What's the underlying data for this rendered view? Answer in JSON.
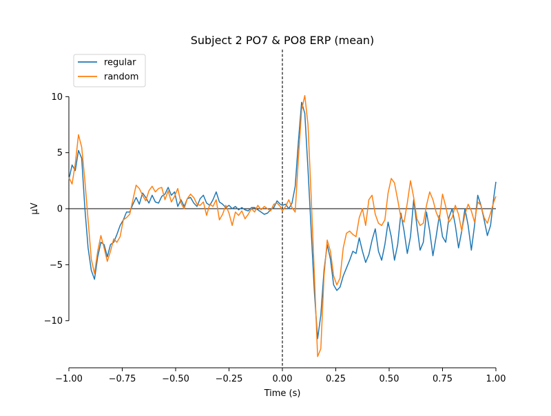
{
  "chart_data": {
    "type": "line",
    "title": "Subject 2 PO7 & PO8 ERP (mean)",
    "xlabel": "Time (s)",
    "ylabel": "µV",
    "xlim": [
      -1.0,
      1.0
    ],
    "ylim": [
      -14.2,
      14.2
    ],
    "x_ticks": [
      -1.0,
      -0.75,
      -0.5,
      -0.25,
      0.0,
      0.25,
      0.5,
      0.75,
      1.0
    ],
    "x_tick_labels": [
      "−1.00",
      "−0.75",
      "−0.50",
      "−0.25",
      "0.00",
      "0.25",
      "0.50",
      "0.75",
      "1.00"
    ],
    "y_ticks": [
      -10,
      -5,
      0,
      5,
      10
    ],
    "y_tick_labels": [
      "−10",
      "−5",
      "0",
      "5",
      "10"
    ],
    "legend_position": "top-left",
    "zero_line": true,
    "vline_x": 0.0,
    "series": [
      {
        "name": "regular",
        "color": "#1f77b4",
        "points": [
          [
            -1.0,
            2.6
          ],
          [
            -0.985,
            3.9
          ],
          [
            -0.97,
            3.4
          ],
          [
            -0.955,
            5.2
          ],
          [
            -0.94,
            4.5
          ],
          [
            -0.925,
            0.0
          ],
          [
            -0.91,
            -3.5
          ],
          [
            -0.895,
            -5.5
          ],
          [
            -0.88,
            -6.3
          ],
          [
            -0.865,
            -4.3
          ],
          [
            -0.85,
            -3.0
          ],
          [
            -0.835,
            -3.2
          ],
          [
            -0.82,
            -4.3
          ],
          [
            -0.805,
            -3.2
          ],
          [
            -0.79,
            -3.0
          ],
          [
            -0.775,
            -2.3
          ],
          [
            -0.76,
            -1.5
          ],
          [
            -0.745,
            -1.0
          ],
          [
            -0.73,
            -0.3
          ],
          [
            -0.715,
            -0.3
          ],
          [
            -0.7,
            0.4
          ],
          [
            -0.685,
            1.0
          ],
          [
            -0.67,
            0.4
          ],
          [
            -0.655,
            1.4
          ],
          [
            -0.64,
            1.0
          ],
          [
            -0.625,
            0.5
          ],
          [
            -0.61,
            1.2
          ],
          [
            -0.595,
            0.6
          ],
          [
            -0.58,
            0.5
          ],
          [
            -0.565,
            1.1
          ],
          [
            -0.55,
            1.3
          ],
          [
            -0.535,
            1.9
          ],
          [
            -0.52,
            1.2
          ],
          [
            -0.505,
            1.5
          ],
          [
            -0.49,
            0.2
          ],
          [
            -0.475,
            0.8
          ],
          [
            -0.46,
            0.2
          ],
          [
            -0.445,
            0.9
          ],
          [
            -0.43,
            1.0
          ],
          [
            -0.415,
            0.5
          ],
          [
            -0.4,
            0.2
          ],
          [
            -0.385,
            0.9
          ],
          [
            -0.37,
            1.2
          ],
          [
            -0.355,
            0.5
          ],
          [
            -0.34,
            0.3
          ],
          [
            -0.325,
            0.8
          ],
          [
            -0.31,
            1.5
          ],
          [
            -0.295,
            0.6
          ],
          [
            -0.28,
            0.4
          ],
          [
            -0.265,
            0.1
          ],
          [
            -0.25,
            0.3
          ],
          [
            -0.235,
            0.0
          ],
          [
            -0.22,
            0.2
          ],
          [
            -0.205,
            -0.1
          ],
          [
            -0.19,
            0.1
          ],
          [
            -0.175,
            -0.1
          ],
          [
            -0.16,
            -0.2
          ],
          [
            -0.145,
            0.1
          ],
          [
            -0.13,
            0.1
          ],
          [
            -0.115,
            -0.1
          ],
          [
            -0.1,
            -0.3
          ],
          [
            -0.085,
            -0.5
          ],
          [
            -0.07,
            -0.4
          ],
          [
            -0.055,
            -0.1
          ],
          [
            -0.04,
            0.1
          ],
          [
            -0.025,
            0.7
          ],
          [
            -0.01,
            0.4
          ],
          [
            0.0,
            0.3
          ],
          [
            0.015,
            0.4
          ],
          [
            0.03,
            0.0
          ],
          [
            0.045,
            0.5
          ],
          [
            0.06,
            2.0
          ],
          [
            0.075,
            6.0
          ],
          [
            0.09,
            9.5
          ],
          [
            0.105,
            8.5
          ],
          [
            0.12,
            3.5
          ],
          [
            0.135,
            -2.0
          ],
          [
            0.15,
            -7.5
          ],
          [
            0.165,
            -11.6
          ],
          [
            0.18,
            -9.5
          ],
          [
            0.195,
            -5.5
          ],
          [
            0.21,
            -3.2
          ],
          [
            0.225,
            -4.5
          ],
          [
            0.24,
            -6.8
          ],
          [
            0.255,
            -7.3
          ],
          [
            0.27,
            -7.0
          ],
          [
            0.285,
            -6.0
          ],
          [
            0.3,
            -5.3
          ],
          [
            0.315,
            -4.6
          ],
          [
            0.33,
            -3.8
          ],
          [
            0.345,
            -4.0
          ],
          [
            0.36,
            -2.6
          ],
          [
            0.375,
            -3.8
          ],
          [
            0.39,
            -4.8
          ],
          [
            0.405,
            -4.1
          ],
          [
            0.42,
            -2.8
          ],
          [
            0.435,
            -1.8
          ],
          [
            0.45,
            -3.8
          ],
          [
            0.465,
            -4.6
          ],
          [
            0.48,
            -3.2
          ],
          [
            0.495,
            -1.2
          ],
          [
            0.51,
            -2.5
          ],
          [
            0.525,
            -4.6
          ],
          [
            0.54,
            -3.2
          ],
          [
            0.555,
            -0.4
          ],
          [
            0.57,
            -2.0
          ],
          [
            0.585,
            -4.0
          ],
          [
            0.6,
            -2.5
          ],
          [
            0.615,
            0.8
          ],
          [
            0.63,
            -1.5
          ],
          [
            0.645,
            -3.7
          ],
          [
            0.66,
            -3.0
          ],
          [
            0.675,
            -0.3
          ],
          [
            0.69,
            -2.0
          ],
          [
            0.705,
            -4.2
          ],
          [
            0.72,
            -2.5
          ],
          [
            0.735,
            -0.6
          ],
          [
            0.75,
            -2.5
          ],
          [
            0.765,
            -3.0
          ],
          [
            0.78,
            -0.8
          ],
          [
            0.795,
            0.0
          ],
          [
            0.81,
            -1.5
          ],
          [
            0.825,
            -3.5
          ],
          [
            0.84,
            -2.0
          ],
          [
            0.855,
            0.0
          ],
          [
            0.87,
            -1.5
          ],
          [
            0.885,
            -3.7
          ],
          [
            0.9,
            -1.5
          ],
          [
            0.915,
            1.2
          ],
          [
            0.93,
            0.3
          ],
          [
            0.945,
            -1.0
          ],
          [
            0.96,
            -2.4
          ],
          [
            0.975,
            -1.5
          ],
          [
            0.99,
            1.0
          ],
          [
            1.0,
            2.4
          ]
        ]
      },
      {
        "name": "random",
        "color": "#ff7f0e",
        "points": [
          [
            -1.0,
            2.8
          ],
          [
            -0.985,
            2.2
          ],
          [
            -0.97,
            4.0
          ],
          [
            -0.955,
            6.6
          ],
          [
            -0.94,
            5.5
          ],
          [
            -0.925,
            2.5
          ],
          [
            -0.91,
            -1.0
          ],
          [
            -0.895,
            -4.5
          ],
          [
            -0.88,
            -5.8
          ],
          [
            -0.865,
            -3.8
          ],
          [
            -0.85,
            -2.4
          ],
          [
            -0.835,
            -3.5
          ],
          [
            -0.82,
            -4.7
          ],
          [
            -0.805,
            -3.8
          ],
          [
            -0.79,
            -2.7
          ],
          [
            -0.775,
            -3.0
          ],
          [
            -0.76,
            -2.5
          ],
          [
            -0.745,
            -1.0
          ],
          [
            -0.73,
            -0.8
          ],
          [
            -0.715,
            -0.5
          ],
          [
            -0.7,
            0.8
          ],
          [
            -0.685,
            2.1
          ],
          [
            -0.67,
            1.8
          ],
          [
            -0.655,
            1.2
          ],
          [
            -0.64,
            0.7
          ],
          [
            -0.625,
            1.6
          ],
          [
            -0.61,
            2.0
          ],
          [
            -0.595,
            1.5
          ],
          [
            -0.58,
            1.8
          ],
          [
            -0.565,
            1.9
          ],
          [
            -0.55,
            0.8
          ],
          [
            -0.535,
            1.6
          ],
          [
            -0.52,
            0.6
          ],
          [
            -0.505,
            1.1
          ],
          [
            -0.49,
            1.8
          ],
          [
            -0.475,
            0.5
          ],
          [
            -0.46,
            0.0
          ],
          [
            -0.445,
            0.9
          ],
          [
            -0.43,
            1.3
          ],
          [
            -0.415,
            1.0
          ],
          [
            -0.4,
            0.4
          ],
          [
            -0.385,
            0.3
          ],
          [
            -0.37,
            0.6
          ],
          [
            -0.355,
            -0.6
          ],
          [
            -0.34,
            0.4
          ],
          [
            -0.325,
            0.2
          ],
          [
            -0.31,
            0.8
          ],
          [
            -0.295,
            -1.0
          ],
          [
            -0.28,
            -0.5
          ],
          [
            -0.265,
            0.3
          ],
          [
            -0.25,
            -0.4
          ],
          [
            -0.235,
            -1.5
          ],
          [
            -0.22,
            -0.3
          ],
          [
            -0.205,
            -0.6
          ],
          [
            -0.19,
            -0.2
          ],
          [
            -0.175,
            -0.9
          ],
          [
            -0.16,
            -0.5
          ],
          [
            -0.145,
            0.0
          ],
          [
            -0.13,
            -0.3
          ],
          [
            -0.115,
            0.3
          ],
          [
            -0.1,
            -0.1
          ],
          [
            -0.085,
            0.2
          ],
          [
            -0.07,
            0.0
          ],
          [
            -0.055,
            -0.2
          ],
          [
            -0.04,
            0.4
          ],
          [
            -0.025,
            0.5
          ],
          [
            -0.01,
            0.2
          ],
          [
            0.0,
            -0.2
          ],
          [
            0.015,
            0.2
          ],
          [
            0.03,
            0.8
          ],
          [
            0.045,
            0.1
          ],
          [
            0.06,
            -0.3
          ],
          [
            0.075,
            4.5
          ],
          [
            0.09,
            8.8
          ],
          [
            0.105,
            10.1
          ],
          [
            0.12,
            7.5
          ],
          [
            0.135,
            1.0
          ],
          [
            0.15,
            -6.0
          ],
          [
            0.165,
            -13.2
          ],
          [
            0.18,
            -12.5
          ],
          [
            0.195,
            -6.0
          ],
          [
            0.21,
            -2.8
          ],
          [
            0.225,
            -3.8
          ],
          [
            0.24,
            -6.0
          ],
          [
            0.255,
            -6.8
          ],
          [
            0.27,
            -6.2
          ],
          [
            0.285,
            -3.5
          ],
          [
            0.3,
            -2.2
          ],
          [
            0.315,
            -2.0
          ],
          [
            0.33,
            -2.3
          ],
          [
            0.345,
            -2.5
          ],
          [
            0.36,
            -0.8
          ],
          [
            0.375,
            0.0
          ],
          [
            0.39,
            -1.5
          ],
          [
            0.405,
            0.8
          ],
          [
            0.42,
            1.2
          ],
          [
            0.435,
            -0.5
          ],
          [
            0.45,
            -1.3
          ],
          [
            0.465,
            -1.5
          ],
          [
            0.48,
            -1.0
          ],
          [
            0.495,
            1.4
          ],
          [
            0.51,
            2.7
          ],
          [
            0.525,
            2.3
          ],
          [
            0.54,
            0.8
          ],
          [
            0.555,
            -0.8
          ],
          [
            0.57,
            -1.2
          ],
          [
            0.585,
            0.5
          ],
          [
            0.6,
            2.5
          ],
          [
            0.615,
            1.0
          ],
          [
            0.63,
            -0.9
          ],
          [
            0.645,
            -1.5
          ],
          [
            0.66,
            -1.3
          ],
          [
            0.675,
            0.3
          ],
          [
            0.69,
            1.5
          ],
          [
            0.705,
            0.8
          ],
          [
            0.72,
            -0.3
          ],
          [
            0.735,
            -1.0
          ],
          [
            0.75,
            1.3
          ],
          [
            0.765,
            0.2
          ],
          [
            0.78,
            -1.2
          ],
          [
            0.795,
            -0.8
          ],
          [
            0.81,
            0.3
          ],
          [
            0.825,
            -0.5
          ],
          [
            0.84,
            -2.0
          ],
          [
            0.855,
            -0.5
          ],
          [
            0.87,
            0.4
          ],
          [
            0.885,
            -0.2
          ],
          [
            0.9,
            -1.2
          ],
          [
            0.915,
            0.6
          ],
          [
            0.93,
            0.3
          ],
          [
            0.945,
            -0.8
          ],
          [
            0.96,
            -1.3
          ],
          [
            0.975,
            -0.4
          ],
          [
            0.99,
            0.6
          ],
          [
            1.0,
            1.1
          ]
        ]
      }
    ]
  }
}
